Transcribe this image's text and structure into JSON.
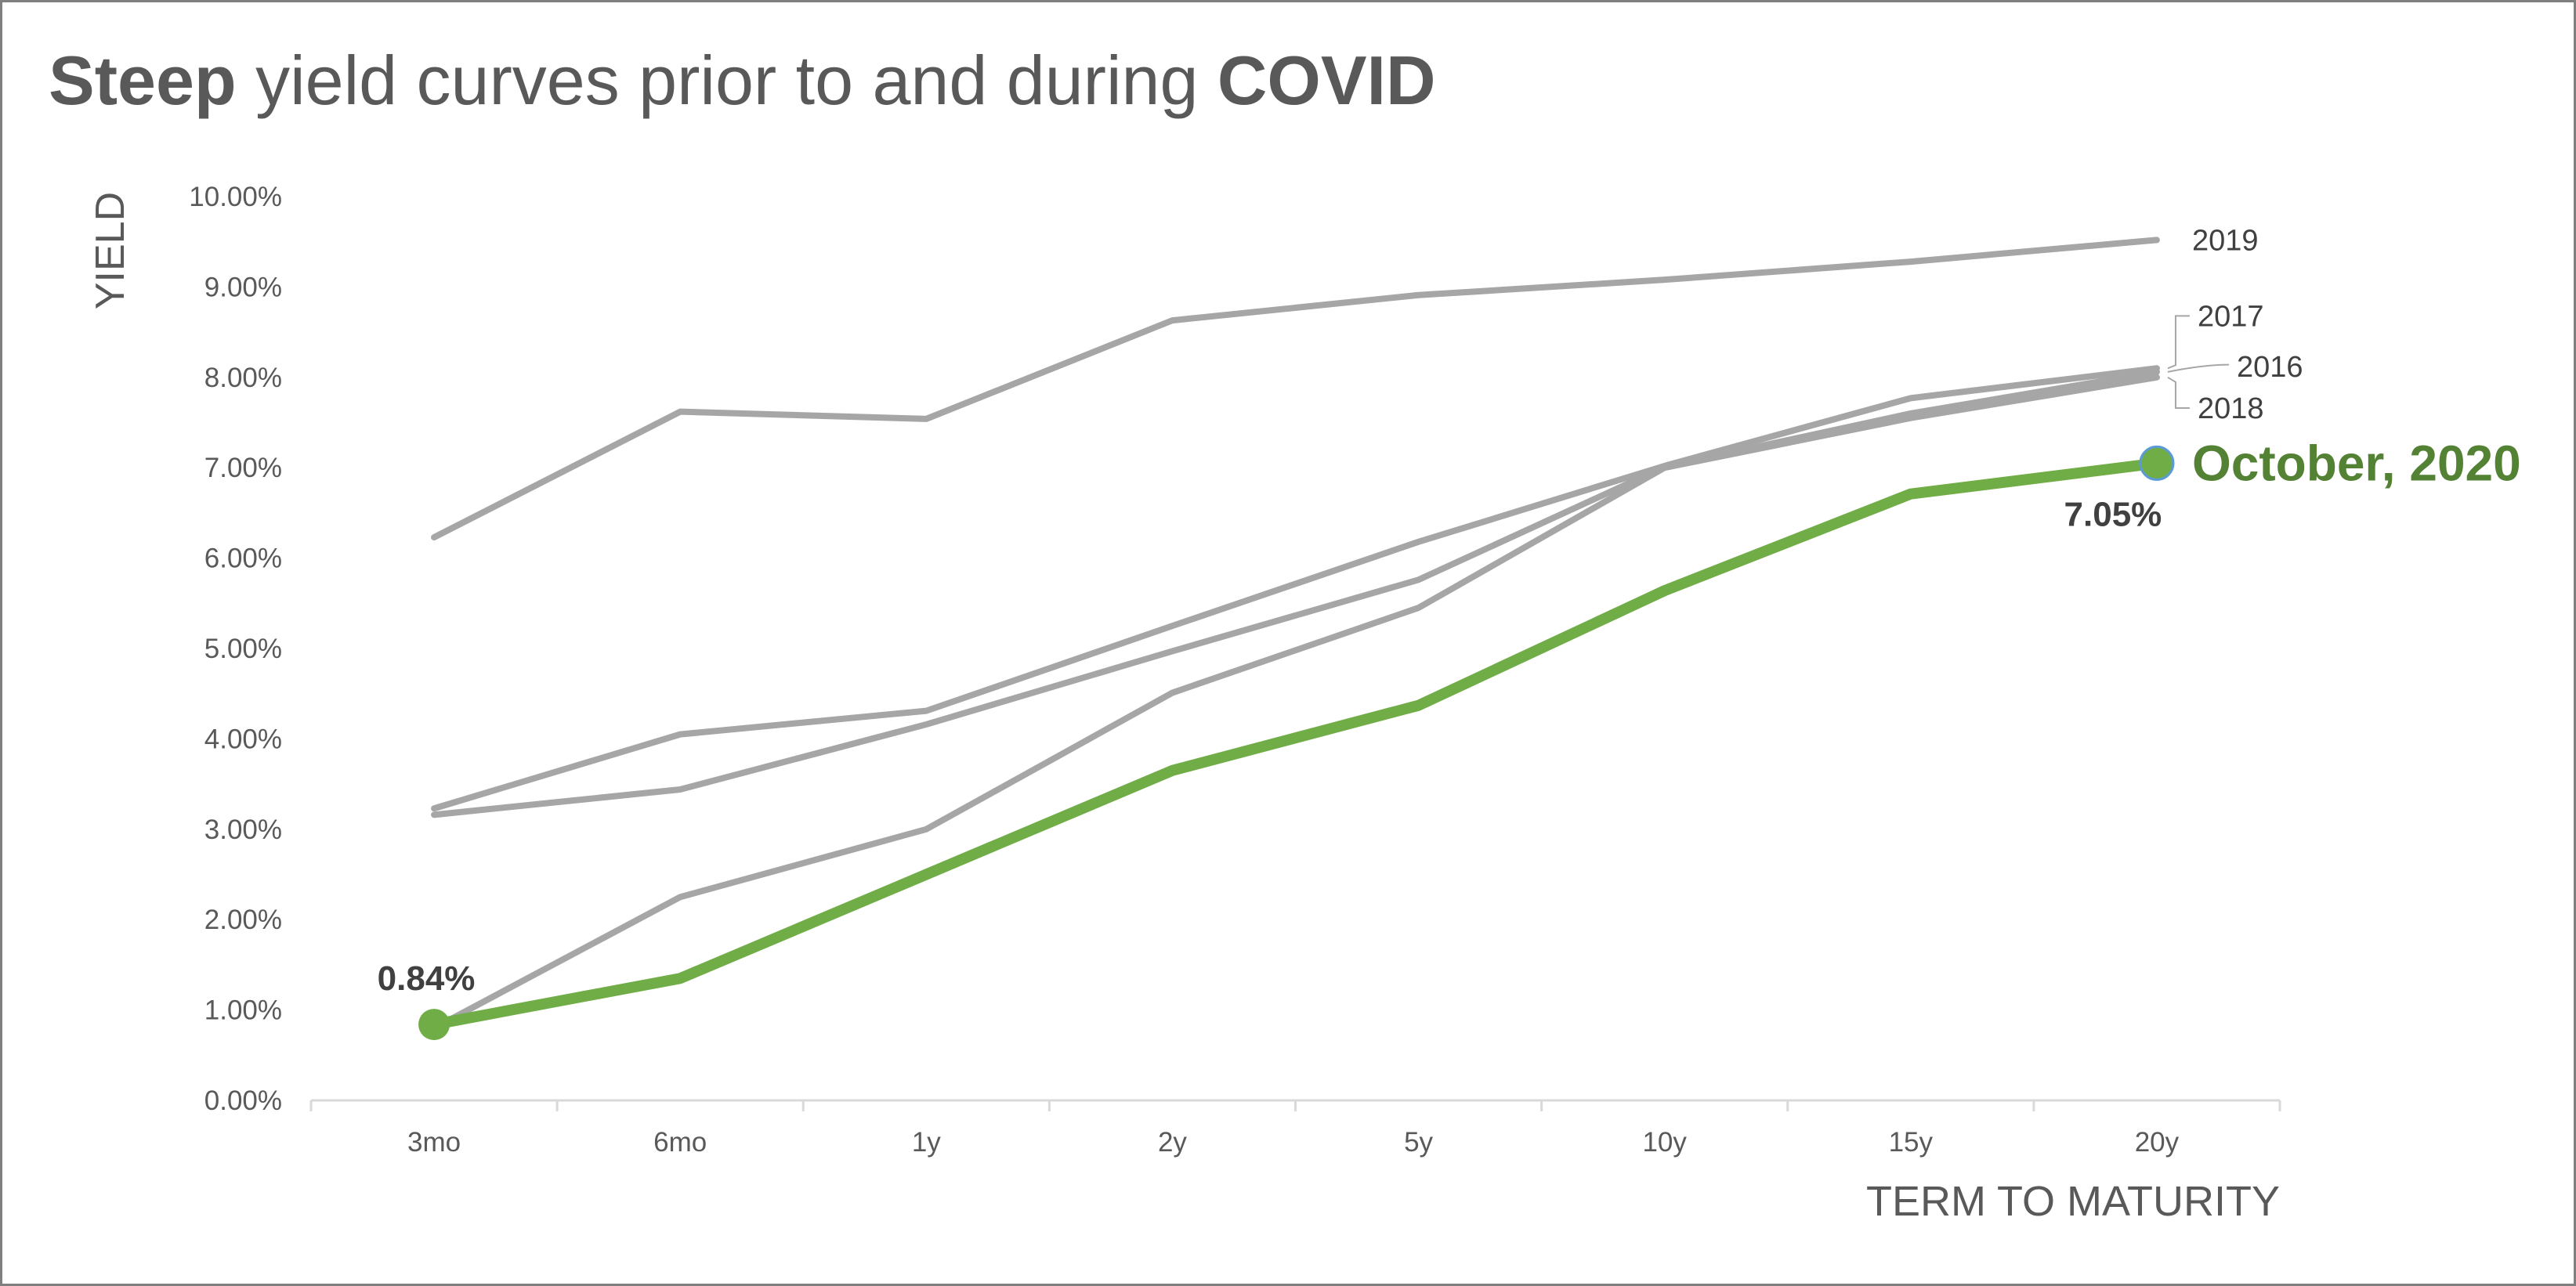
{
  "title": {
    "bold_start": "Steep",
    "middle": " yield curves prior to and during ",
    "bold_end": "COVID"
  },
  "colors": {
    "text": "#595959",
    "gray_series": "#a6a6a6",
    "highlight": "#70ad47",
    "highlight_label": "#548235",
    "marker_edge": "#5b9bd5"
  },
  "chart_data": {
    "type": "line",
    "title": "Steep yield curves prior to and during COVID",
    "xlabel": "TERM TO MATURITY",
    "ylabel": "YIELD",
    "categories": [
      "3mo",
      "6mo",
      "1y",
      "2y",
      "5y",
      "10y",
      "15y",
      "20y"
    ],
    "ylim": [
      0,
      10
    ],
    "y_ticks": [
      0,
      1,
      2,
      3,
      4,
      5,
      6,
      7,
      8,
      9,
      10
    ],
    "y_tick_labels": [
      "0.00%",
      "1.00%",
      "2.00%",
      "3.00%",
      "4.00%",
      "5.00%",
      "6.00%",
      "7.00%",
      "8.00%",
      "9.00%",
      "10.00%"
    ],
    "grid": false,
    "legend": "none (series labeled at line ends)",
    "series": [
      {
        "name": "2019",
        "values": [
          6.23,
          7.62,
          7.54,
          8.63,
          8.91,
          9.08,
          9.28,
          9.52
        ]
      },
      {
        "name": "2017",
        "values": [
          3.23,
          4.05,
          4.31,
          5.25,
          6.18,
          7.02,
          7.77,
          8.1
        ]
      },
      {
        "name": "2016",
        "values": [
          3.16,
          3.44,
          4.16,
          4.97,
          5.76,
          7.01,
          7.6,
          8.06
        ]
      },
      {
        "name": "2018",
        "values": [
          0.8,
          2.25,
          3.0,
          4.51,
          5.45,
          7.0,
          7.55,
          8.0
        ]
      },
      {
        "name": "October, 2020",
        "values": [
          0.84,
          1.35,
          2.5,
          3.65,
          4.37,
          5.64,
          6.71,
          7.05
        ],
        "highlight": true
      }
    ],
    "annotations": [
      {
        "text": "0.84%",
        "category": "3mo",
        "value": 0.84
      },
      {
        "text": "7.05%",
        "category": "20y",
        "value": 7.05
      }
    ]
  }
}
